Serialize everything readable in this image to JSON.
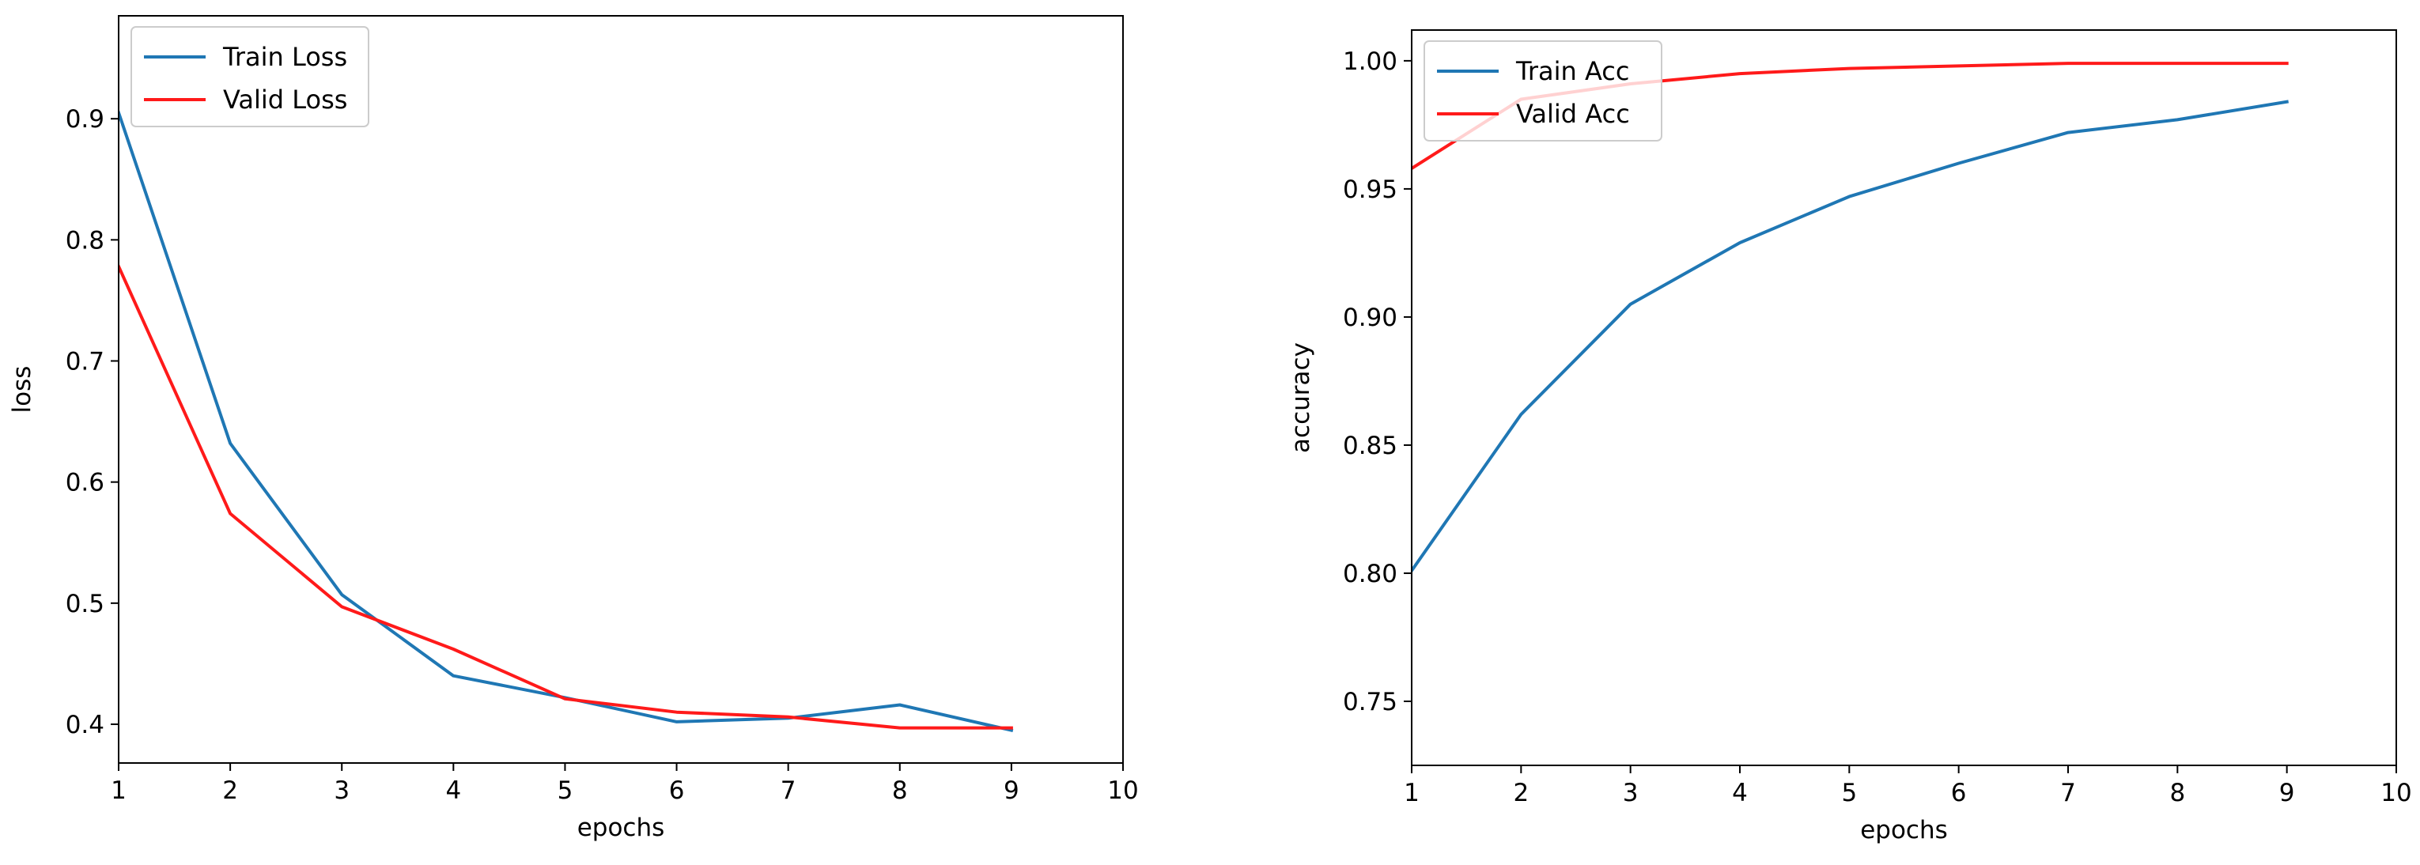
{
  "chart_data": [
    {
      "type": "line",
      "title": "",
      "xlabel": "epochs",
      "ylabel": "loss",
      "xlim": [
        1,
        10
      ],
      "ylim": [
        0.368,
        0.985
      ],
      "xticks": [
        1,
        2,
        3,
        4,
        5,
        6,
        7,
        8,
        9,
        10
      ],
      "yticks": [
        0.4,
        0.5,
        0.6,
        0.7,
        0.8,
        0.9
      ],
      "grid": false,
      "legend_position": "upper-left",
      "x": [
        1,
        2,
        3,
        4,
        5,
        6,
        7,
        8,
        9
      ],
      "series": [
        {
          "name": "Train Loss",
          "color": "#1f77b4",
          "values": [
            0.905,
            0.632,
            0.507,
            0.44,
            0.422,
            0.402,
            0.405,
            0.416,
            0.395
          ]
        },
        {
          "name": "Valid Loss",
          "color": "#ff1a1a",
          "values": [
            0.778,
            0.574,
            0.497,
            0.462,
            0.421,
            0.41,
            0.406,
            0.397,
            0.397
          ]
        }
      ]
    },
    {
      "type": "line",
      "title": "",
      "xlabel": "epochs",
      "ylabel": "accuracy",
      "xlim": [
        1,
        10
      ],
      "ylim": [
        0.725,
        1.012
      ],
      "xticks": [
        1,
        2,
        3,
        4,
        5,
        6,
        7,
        8,
        9,
        10
      ],
      "yticks": [
        0.75,
        0.8,
        0.85,
        0.9,
        0.95,
        1.0
      ],
      "grid": false,
      "legend_position": "upper-left",
      "x": [
        1,
        2,
        3,
        4,
        5,
        6,
        7,
        8,
        9
      ],
      "series": [
        {
          "name": "Train Acc",
          "color": "#1f77b4",
          "values": [
            0.801,
            0.862,
            0.905,
            0.929,
            0.947,
            0.96,
            0.972,
            0.977,
            0.984
          ]
        },
        {
          "name": "Valid Acc",
          "color": "#ff1a1a",
          "values": [
            0.958,
            0.985,
            0.991,
            0.995,
            0.997,
            0.998,
            0.999,
            0.999,
            0.999
          ]
        }
      ]
    }
  ]
}
